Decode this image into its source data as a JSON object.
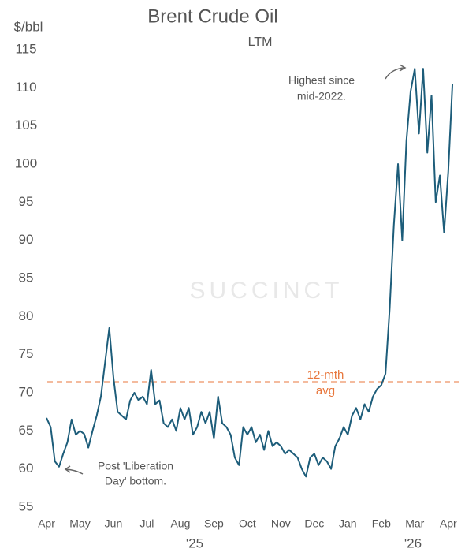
{
  "chart_data": {
    "type": "line",
    "title": "Brent Crude Oil",
    "subtitle": "LTM",
    "y_label": "$/bbl",
    "watermark": "SUCCINCT",
    "color": "#1d5d7a",
    "categories": [
      "Apr",
      null,
      null,
      null,
      null,
      null,
      null,
      null,
      "May",
      null,
      null,
      null,
      null,
      null,
      null,
      null,
      "Jun",
      null,
      null,
      null,
      null,
      null,
      null,
      null,
      "Jul",
      null,
      null,
      null,
      null,
      null,
      null,
      null,
      "Aug",
      null,
      null,
      null,
      null,
      null,
      null,
      null,
      "Sep",
      null,
      null,
      null,
      null,
      null,
      null,
      null,
      "Oct",
      null,
      null,
      null,
      null,
      null,
      null,
      null,
      "Nov",
      null,
      null,
      null,
      null,
      null,
      null,
      null,
      "Dec",
      null,
      null,
      null,
      null,
      null,
      null,
      null,
      "Jan",
      null,
      null,
      null,
      null,
      null,
      null,
      null,
      "Feb",
      null,
      null,
      null,
      null,
      null,
      null,
      null,
      "Mar",
      null,
      null,
      null,
      null,
      null,
      null,
      null,
      "Apr",
      null
    ],
    "values": [
      66.7,
      65.5,
      61,
      60.3,
      62,
      63.5,
      66.5,
      64.5,
      65,
      64.6,
      62.8,
      65,
      67,
      69.5,
      74,
      78.5,
      72,
      67.5,
      67,
      66.5,
      69,
      70,
      69,
      69.5,
      68.5,
      73,
      68.5,
      69,
      66,
      65.5,
      66.5,
      65,
      68,
      66.5,
      68,
      64.5,
      65.5,
      67.5,
      66,
      67.5,
      64,
      69.5,
      66,
      65.5,
      64.5,
      61.5,
      60.5,
      65.5,
      64.5,
      65.5,
      63.5,
      64.5,
      62.5,
      65,
      63,
      63.5,
      63,
      62,
      62.5,
      62,
      61.5,
      60,
      59,
      61.5,
      62,
      60.5,
      61.5,
      61,
      60,
      63,
      64,
      65.5,
      64.5,
      67,
      68,
      66.5,
      68.5,
      67.5,
      69.5,
      70.5,
      71,
      72.5,
      81,
      92,
      100,
      90,
      103,
      109.5,
      112.5,
      104,
      112.5,
      101.5,
      109,
      95,
      98.5,
      91,
      99,
      110.5
    ],
    "year_labels": [
      "'25",
      "'26"
    ],
    "avg_line": {
      "value": 71.4,
      "label": [
        "12-mth",
        "avg"
      ],
      "color": "#e8773d"
    },
    "annotations": [
      {
        "lines": [
          "Highest since",
          "mid-2022."
        ]
      },
      {
        "lines": [
          "Post 'Liberation",
          "Day' bottom."
        ]
      }
    ],
    "ylim": [
      55,
      115
    ],
    "yticks": [
      55,
      60,
      65,
      70,
      75,
      80,
      85,
      90,
      95,
      100,
      105,
      110,
      115
    ],
    "grid": false
  }
}
